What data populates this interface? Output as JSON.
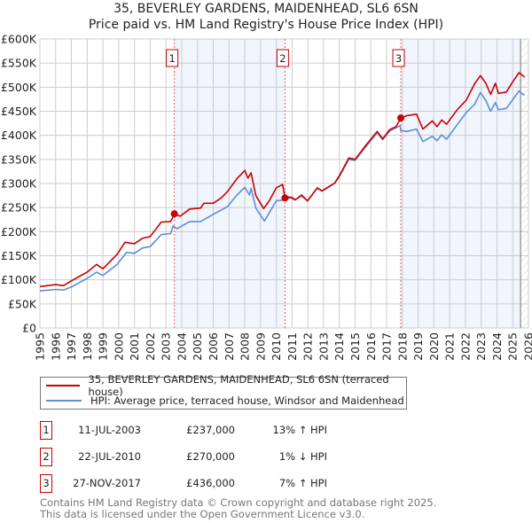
{
  "title": "35, BEVERLEY GARDENS, MAIDENHEAD, SL6 6SN",
  "subtitle": "Price paid vs. HM Land Registry's House Price Index (HPI)",
  "chart_data": {
    "type": "line",
    "title": "35, BEVERLEY GARDENS, MAIDENHEAD, SL6 6SN",
    "xlim": [
      1995,
      2026
    ],
    "ylim": [
      0,
      600000
    ],
    "xticks": [
      "1995",
      "1996",
      "1997",
      "1998",
      "1999",
      "2000",
      "2001",
      "2002",
      "2003",
      "2004",
      "2005",
      "2006",
      "2007",
      "2008",
      "2009",
      "2010",
      "2011",
      "2012",
      "2013",
      "2014",
      "2015",
      "2016",
      "2017",
      "2018",
      "2019",
      "2020",
      "2021",
      "2022",
      "2023",
      "2024",
      "2025",
      "2026"
    ],
    "yticks": [
      {
        "v": 0,
        "label": "£0"
      },
      {
        "v": 50000,
        "label": "£50K"
      },
      {
        "v": 100000,
        "label": "£100K"
      },
      {
        "v": 150000,
        "label": "£150K"
      },
      {
        "v": 200000,
        "label": "£200K"
      },
      {
        "v": 250000,
        "label": "£250K"
      },
      {
        "v": 300000,
        "label": "£300K"
      },
      {
        "v": 350000,
        "label": "£350K"
      },
      {
        "v": 400000,
        "label": "£400K"
      },
      {
        "v": 450000,
        "label": "£450K"
      },
      {
        "v": 500000,
        "label": "£500K"
      },
      {
        "v": 550000,
        "label": "£550K"
      },
      {
        "v": 600000,
        "label": "£600K"
      }
    ],
    "grid": true,
    "series": [
      {
        "name": "35, BEVERLEY GARDENS, MAIDENHEAD, SL6 6SN (terraced house)",
        "color": "#cc0000",
        "x": [
          1995,
          1996,
          1996.5,
          1997,
          1998,
          1998.6,
          1999,
          1999.9,
          2000.4,
          2001,
          2001.5,
          2002,
          2002.7,
          2003.3,
          2003.53,
          2003.9,
          2004.5,
          2005.2,
          2005.4,
          2006,
          2006.5,
          2006.9,
          2007.5,
          2008,
          2008.2,
          2008.4,
          2008.7,
          2009.2,
          2009.55,
          2010,
          2010.4,
          2010.55,
          2010.85,
          2011.2,
          2011.6,
          2011.98,
          2012.6,
          2012.9,
          2013.7,
          2014,
          2014.6,
          2015,
          2015.7,
          2016.4,
          2016.75,
          2017.2,
          2017.6,
          2017.9,
          2018.3,
          2018.9,
          2019.3,
          2019.9,
          2020.2,
          2020.5,
          2020.8,
          2021.5,
          2022.05,
          2022.6,
          2022.95,
          2023.3,
          2023.6,
          2023.9,
          2024.1,
          2024.6,
          2025,
          2025.4,
          2025.75
        ],
        "y": [
          86000,
          90000,
          88000,
          98000,
          116000,
          132000,
          123000,
          153000,
          178000,
          175000,
          186000,
          190000,
          220000,
          221000,
          237000,
          232000,
          247000,
          249000,
          259000,
          259000,
          270000,
          283000,
          310000,
          327000,
          311000,
          322000,
          275000,
          248000,
          264000,
          291000,
          298000,
          270000,
          272000,
          266000,
          276000,
          264000,
          291000,
          285000,
          301000,
          316000,
          353000,
          350000,
          380000,
          408000,
          393000,
          412000,
          418000,
          436000,
          441000,
          444000,
          413000,
          430000,
          418000,
          432000,
          423000,
          454000,
          473000,
          508000,
          524000,
          508000,
          485000,
          508000,
          487000,
          490000,
          511000,
          530000,
          521000
        ]
      },
      {
        "name": "HPI: Average price, terraced house, Windsor and Maidenhead",
        "color": "#5b8fd4",
        "x": [
          1995,
          1996,
          1996.5,
          1997,
          1998,
          1998.6,
          1999,
          1999.9,
          2000.5,
          2001,
          2001.5,
          2002,
          2002.7,
          2003.3,
          2003.45,
          2003.7,
          2004.5,
          2005.2,
          2006,
          2006.9,
          2007.5,
          2008,
          2008.3,
          2008.4,
          2008.7,
          2009.25,
          2009.55,
          2010,
          2010.55,
          2011,
          2011.2,
          2011.6,
          2011.98,
          2012.6,
          2012.9,
          2013.7,
          2014,
          2014.6,
          2015,
          2015.7,
          2016.4,
          2016.75,
          2017.2,
          2017.85,
          2017.9,
          2018.3,
          2018.9,
          2019.3,
          2019.9,
          2020.2,
          2020.5,
          2020.8,
          2021.5,
          2022.05,
          2022.6,
          2022.95,
          2023.3,
          2023.6,
          2023.9,
          2024.1,
          2024.6,
          2025,
          2025.4,
          2025.75
        ],
        "y": [
          77000,
          80000,
          79000,
          85000,
          103000,
          116000,
          109000,
          132000,
          157000,
          155000,
          166000,
          169000,
          194000,
          196000,
          212000,
          206000,
          221000,
          221000,
          236000,
          252000,
          276000,
          292000,
          276000,
          290000,
          249000,
          222000,
          239000,
          264000,
          266000,
          272000,
          266000,
          274000,
          264000,
          290000,
          284000,
          300000,
          314000,
          350000,
          348000,
          377000,
          405000,
          391000,
          409000,
          420000,
          410000,
          408000,
          413000,
          387000,
          398000,
          389000,
          401000,
          392000,
          423000,
          447000,
          465000,
          489000,
          472000,
          450000,
          468000,
          453000,
          456000,
          474000,
          492000,
          483000
        ]
      }
    ],
    "sales": [
      {
        "n": "1",
        "x": 2003.53,
        "y": 237000
      },
      {
        "n": "2",
        "x": 2010.55,
        "y": 270000
      },
      {
        "n": "3",
        "x": 2017.9,
        "y": 436000
      }
    ],
    "shaded_ranges": [
      [
        2003.53,
        2010.55
      ],
      [
        2017.9,
        2025.5
      ]
    ],
    "hatched_from": 2025.5,
    "legend_position": "bottom"
  },
  "legend": {
    "property": "35, BEVERLEY GARDENS, MAIDENHEAD, SL6 6SN (terraced house)",
    "hpi": "HPI: Average price, terraced house, Windsor and Maidenhead"
  },
  "transactions": [
    {
      "n": "1",
      "date": "11-JUL-2003",
      "price": "£237,000",
      "hpi": "13% ↑ HPI"
    },
    {
      "n": "2",
      "date": "22-JUL-2010",
      "price": "£270,000",
      "hpi": "1% ↓ HPI"
    },
    {
      "n": "3",
      "date": "27-NOV-2017",
      "price": "£436,000",
      "hpi": "7% ↑ HPI"
    }
  ],
  "footer": {
    "line1": "Contains HM Land Registry data © Crown copyright and database right 2025.",
    "line2": "This data is licensed under the Open Government Licence v3.0."
  }
}
